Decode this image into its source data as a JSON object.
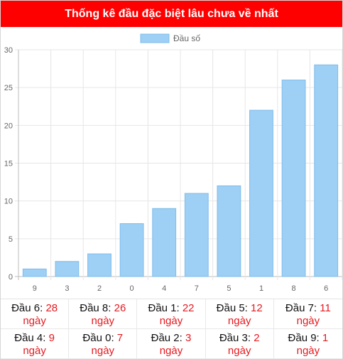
{
  "header": {
    "title": "Thống kê đầu đặc biệt lâu chưa về nhất"
  },
  "colors": {
    "header_bg": "#ff0000",
    "bar_fill": "#9ecff5",
    "bar_stroke": "#7fbcea",
    "accent": "#e5191f"
  },
  "chart_data": {
    "type": "bar",
    "title": "",
    "xlabel": "",
    "ylabel": "",
    "legend": {
      "label": "Đầu số",
      "position": "top"
    },
    "categories": [
      "9",
      "3",
      "2",
      "0",
      "4",
      "7",
      "5",
      "1",
      "8",
      "6"
    ],
    "series": [
      {
        "name": "Đầu số",
        "values": [
          1,
          2,
          3,
          7,
          9,
          11,
          12,
          22,
          26,
          28
        ]
      }
    ],
    "ylim": [
      0,
      30
    ],
    "yticks": [
      0,
      5,
      10,
      15,
      20,
      25,
      30
    ],
    "grid": true
  },
  "stats": [
    {
      "label": "Đầu 6:",
      "value": "28",
      "unit": "ngày"
    },
    {
      "label": "Đầu 8:",
      "value": "26",
      "unit": "ngày"
    },
    {
      "label": "Đầu 1:",
      "value": "22",
      "unit": "ngày"
    },
    {
      "label": "Đầu 5:",
      "value": "12",
      "unit": "ngày"
    },
    {
      "label": "Đầu 7:",
      "value": "11",
      "unit": "ngày"
    },
    {
      "label": "Đầu 4:",
      "value": "9",
      "unit": "ngày"
    },
    {
      "label": "Đầu 0:",
      "value": "7",
      "unit": "ngày"
    },
    {
      "label": "Đầu 2:",
      "value": "3",
      "unit": "ngày"
    },
    {
      "label": "Đầu 3:",
      "value": "2",
      "unit": "ngày"
    },
    {
      "label": "Đầu 9:",
      "value": "1",
      "unit": "ngày"
    }
  ]
}
